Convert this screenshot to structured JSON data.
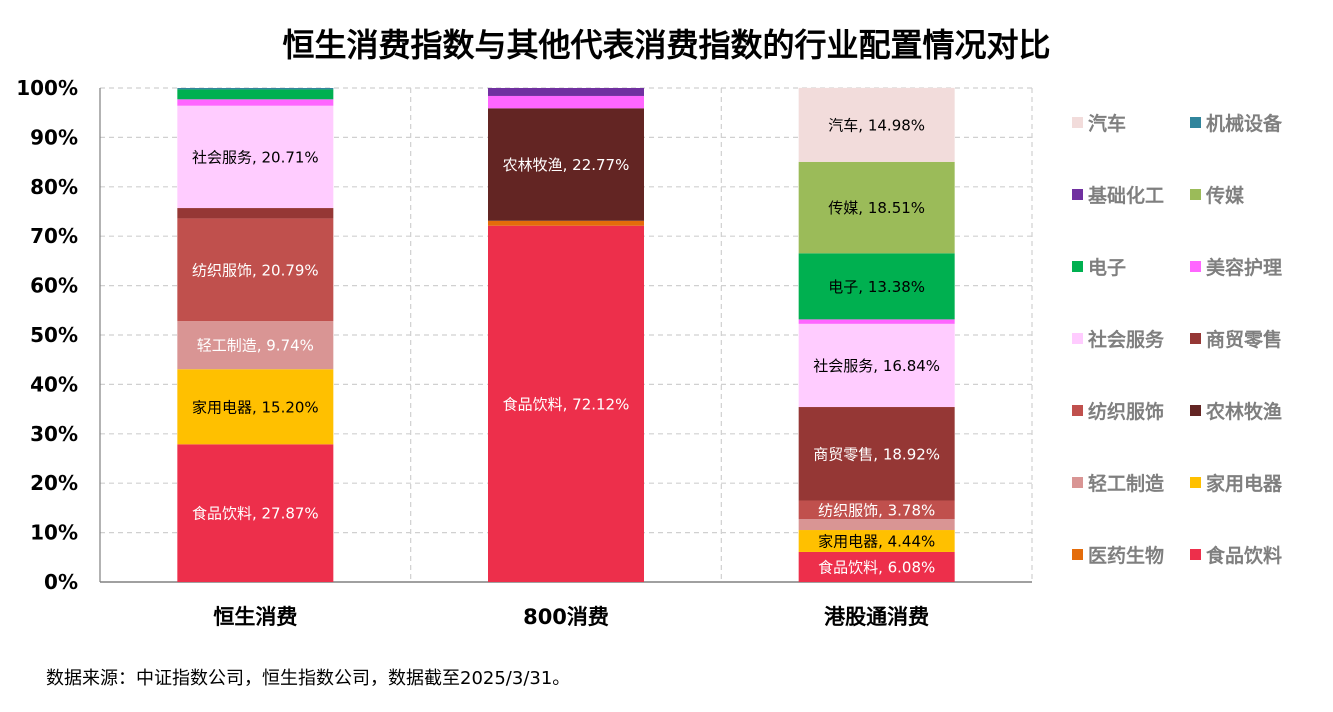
{
  "title": "恒生消费指数与其他代表消费指数的行业配置情况对比",
  "source": "数据来源：中证指数公司，恒生指数公司，数据截至2025/3/31。",
  "chart_data": {
    "type": "bar",
    "stacked": true,
    "percent": true,
    "ylim": [
      0,
      100
    ],
    "yticks": [
      "0%",
      "10%",
      "20%",
      "30%",
      "40%",
      "50%",
      "60%",
      "70%",
      "80%",
      "90%",
      "100%"
    ],
    "grid": true,
    "legend_position": "right",
    "categories": [
      "恒生消费",
      "800消费",
      "港股通消费"
    ],
    "series": [
      {
        "name": "食品饮料",
        "color": "#ed2f4b",
        "values": [
          27.87,
          72.12,
          6.08
        ]
      },
      {
        "name": "医药生物",
        "color": "#e46c0a",
        "values": [
          0,
          1.0,
          0
        ]
      },
      {
        "name": "家用电器",
        "color": "#ffc000",
        "values": [
          15.2,
          0,
          4.44
        ]
      },
      {
        "name": "轻工制造",
        "color": "#d99594",
        "values": [
          9.74,
          0,
          2.2
        ]
      },
      {
        "name": "纺织服饰",
        "color": "#c0504d",
        "values": [
          20.79,
          0,
          3.78
        ]
      },
      {
        "name": "农林牧渔",
        "color": "#632523",
        "values": [
          0,
          22.77,
          0
        ]
      },
      {
        "name": "商贸零售",
        "color": "#953735",
        "values": [
          2.1,
          0,
          18.92
        ]
      },
      {
        "name": "社会服务",
        "color": "#ffccff",
        "values": [
          20.71,
          0,
          16.84
        ]
      },
      {
        "name": "美容护理",
        "color": "#ff66ff",
        "values": [
          1.3,
          2.5,
          0.9
        ]
      },
      {
        "name": "电子",
        "color": "#00b050",
        "values": [
          2.0,
          0,
          13.38
        ]
      },
      {
        "name": "传媒",
        "color": "#9bbb59",
        "values": [
          0,
          0,
          18.51
        ]
      },
      {
        "name": "基础化工",
        "color": "#7030a0",
        "values": [
          0,
          1.61,
          0
        ]
      },
      {
        "name": "机械设备",
        "color": "#31859c",
        "values": [
          0.29,
          0,
          0
        ]
      },
      {
        "name": "汽车",
        "color": "#f2dcdb",
        "values": [
          0,
          0,
          14.98
        ]
      }
    ],
    "data_labels": [
      {
        "category": 0,
        "series": "食品饮料",
        "text": "食品饮料, 27.87%"
      },
      {
        "category": 0,
        "series": "家用电器",
        "text": "家用电器, 15.20%"
      },
      {
        "category": 0,
        "series": "轻工制造",
        "text": "轻工制造, 9.74%"
      },
      {
        "category": 0,
        "series": "纺织服饰",
        "text": "纺织服饰, 20.79%"
      },
      {
        "category": 0,
        "series": "社会服务",
        "text": "社会服务, 20.71%"
      },
      {
        "category": 1,
        "series": "食品饮料",
        "text": "食品饮料, 72.12%"
      },
      {
        "category": 1,
        "series": "农林牧渔",
        "text": "农林牧渔, 22.77%"
      },
      {
        "category": 2,
        "series": "食品饮料",
        "text": "食品饮料, 6.08%"
      },
      {
        "category": 2,
        "series": "家用电器",
        "text": "家用电器, 4.44%"
      },
      {
        "category": 2,
        "series": "纺织服饰",
        "text": "纺织服饰, 3.78%"
      },
      {
        "category": 2,
        "series": "商贸零售",
        "text": "商贸零售, 18.92%"
      },
      {
        "category": 2,
        "series": "社会服务",
        "text": "社会服务, 16.84%"
      },
      {
        "category": 2,
        "series": "电子",
        "text": "电子, 13.38%"
      },
      {
        "category": 2,
        "series": "传媒",
        "text": "传媒, 18.51%"
      },
      {
        "category": 2,
        "series": "汽车",
        "text": "汽车, 14.98%"
      }
    ],
    "legend_order": [
      "汽车",
      "机械设备",
      "基础化工",
      "传媒",
      "电子",
      "美容护理",
      "社会服务",
      "商贸零售",
      "纺织服饰",
      "农林牧渔",
      "轻工制造",
      "家用电器",
      "医药生物",
      "食品饮料"
    ]
  }
}
